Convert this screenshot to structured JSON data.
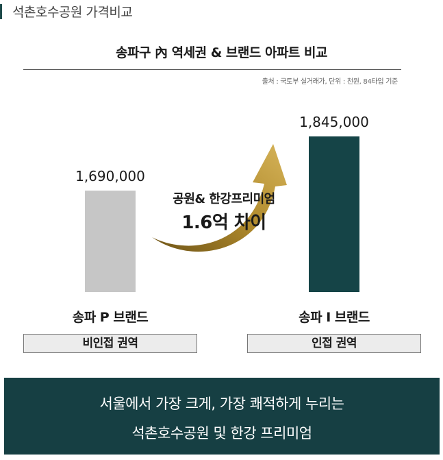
{
  "header": {
    "title": "석촌호수공원 가격비교"
  },
  "chart_data": {
    "type": "bar",
    "title": "송파구 內 역세권 & 브랜드 아파트 비교",
    "source": "출처 : 국토부 실거래가, 단위 : 천원, 84타입 기준",
    "categories": [
      "송파 P 브랜드",
      "송파 I 브랜드"
    ],
    "zones": [
      "비인접 권역",
      "인접 권역"
    ],
    "values": [
      1690000,
      1845000
    ],
    "value_labels": [
      "1,690,000",
      "1,845,000"
    ],
    "ylim": [
      1400000,
      1900000
    ],
    "bar_colors": [
      "#c6c6c6",
      "#154447"
    ],
    "annotation": {
      "line1": "공원& 한강프리미엄",
      "line2": "1.6억 차이"
    },
    "arrow_color": "#b08a2c",
    "grid": false
  },
  "banner": {
    "line1": "서울에서 가장 크게, 가장 쾌적하게 누리는",
    "line2": "석촌호수공원 및 한강 프리미엄"
  }
}
